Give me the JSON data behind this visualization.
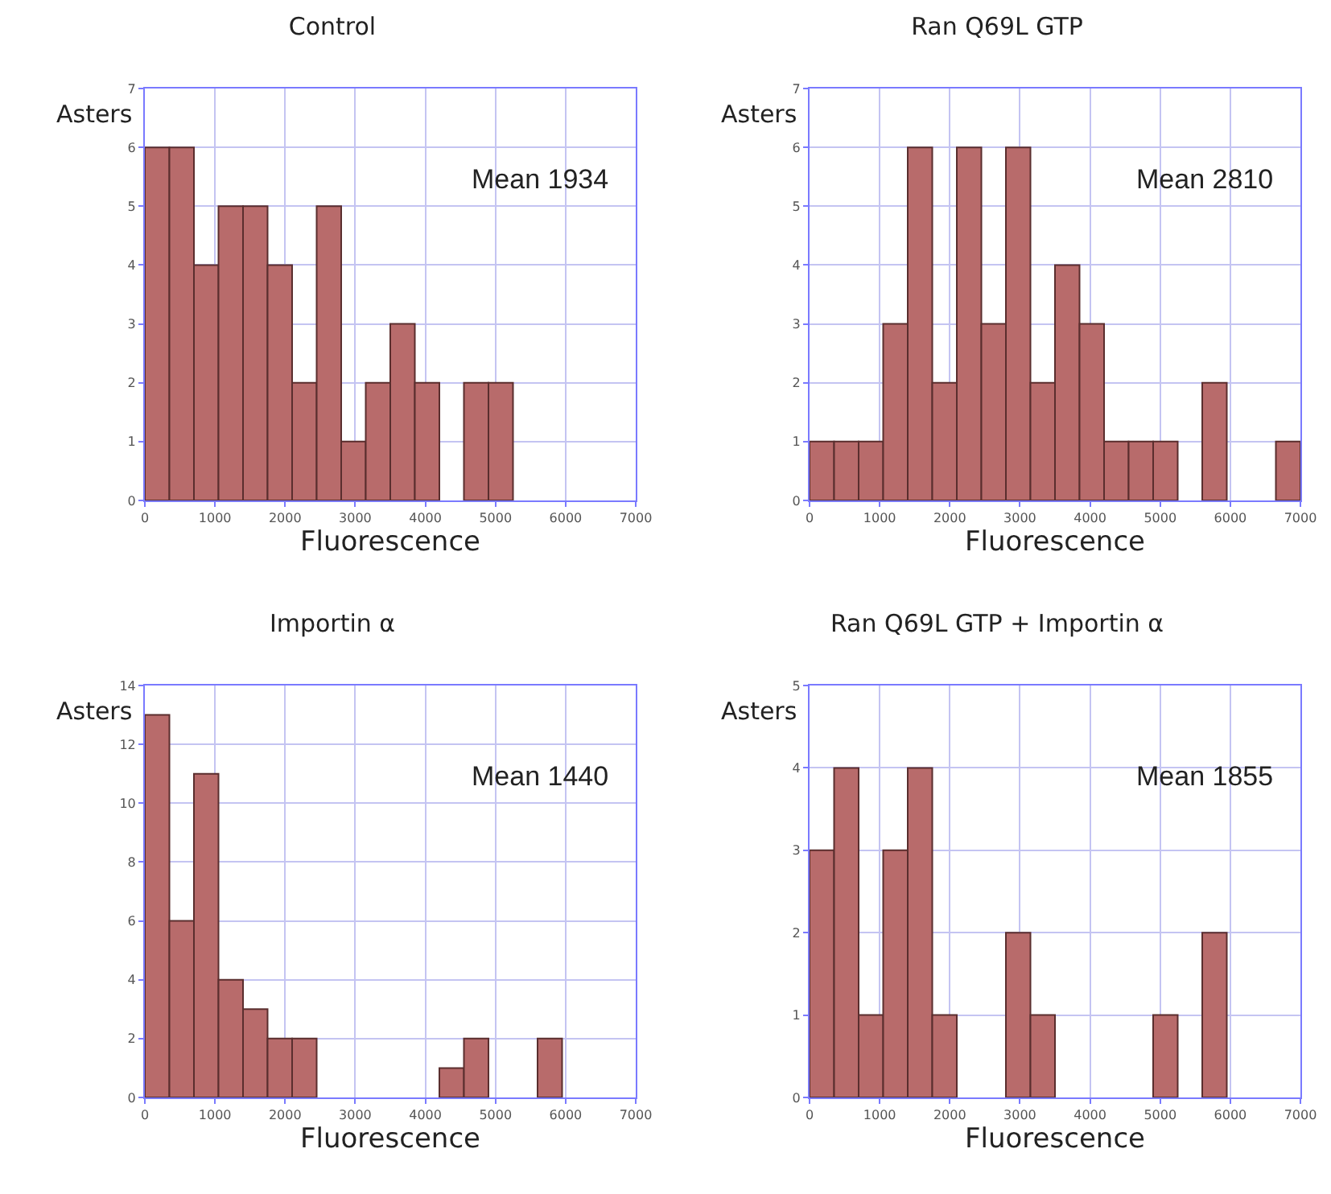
{
  "chart_data": [
    {
      "type": "histogram",
      "title": "Control",
      "xlabel": "Fluorescence",
      "ylabel": "Asters",
      "annotations": [
        "Mean 1934"
      ],
      "bins": [
        0,
        350,
        700,
        1050,
        1400,
        1750,
        2100,
        2450,
        2800,
        3150,
        3500,
        3850,
        4200,
        4550,
        4900,
        5250
      ],
      "values": [
        6,
        6,
        4,
        5,
        5,
        4,
        2,
        5,
        1,
        2,
        3,
        2,
        0,
        2,
        2
      ],
      "color": "#b86b6b",
      "xlim": [
        0,
        7000
      ],
      "xticks": [
        0,
        1000,
        2000,
        3000,
        4000,
        5000,
        6000,
        7000
      ],
      "ylim": [
        0,
        7
      ],
      "yticks": [
        0,
        1,
        2,
        3,
        4,
        5,
        6,
        7
      ],
      "grid": true
    },
    {
      "type": "histogram",
      "title": "Ran Q69L GTP",
      "xlabel": "Fluorescence",
      "ylabel": "Asters",
      "annotations": [
        "Mean 2810"
      ],
      "bins": [
        0,
        350,
        700,
        1050,
        1400,
        1750,
        2100,
        2450,
        2800,
        3150,
        3500,
        3850,
        4200,
        4550,
        4900,
        5250,
        5600,
        5950,
        6300,
        6650,
        7000
      ],
      "values": [
        1,
        1,
        1,
        3,
        6,
        2,
        6,
        3,
        6,
        2,
        4,
        3,
        1,
        1,
        1,
        0,
        2,
        0,
        0,
        1
      ],
      "color": "#b86b6b",
      "xlim": [
        0,
        7000
      ],
      "xticks": [
        0,
        1000,
        2000,
        3000,
        4000,
        5000,
        6000,
        7000
      ],
      "ylim": [
        0,
        7
      ],
      "yticks": [
        0,
        1,
        2,
        3,
        4,
        5,
        6,
        7
      ],
      "grid": true
    },
    {
      "type": "histogram",
      "title": "Importin α",
      "xlabel": "Fluorescence",
      "ylabel": "Asters",
      "annotations": [
        "Mean 1440"
      ],
      "bins": [
        0,
        350,
        700,
        1050,
        1400,
        1750,
        2100,
        2450,
        2800,
        3150,
        3500,
        3850,
        4200,
        4550,
        4900,
        5250,
        5600,
        5950
      ],
      "values": [
        13,
        6,
        11,
        4,
        3,
        2,
        2,
        0,
        0,
        0,
        0,
        0,
        1,
        2,
        0,
        0,
        2
      ],
      "color": "#b86b6b",
      "xlim": [
        0,
        7000
      ],
      "xticks": [
        0,
        1000,
        2000,
        3000,
        4000,
        5000,
        6000,
        7000
      ],
      "ylim": [
        0,
        14
      ],
      "yticks": [
        0,
        2,
        4,
        6,
        8,
        10,
        12,
        14
      ],
      "grid": true
    },
    {
      "type": "histogram",
      "title": "Ran Q69L GTP + Importin α",
      "xlabel": "Fluorescence",
      "ylabel": "Asters",
      "annotations": [
        "Mean 1855"
      ],
      "bins": [
        0,
        350,
        700,
        1050,
        1400,
        1750,
        2100,
        2450,
        2800,
        3150,
        3500,
        3850,
        4200,
        4550,
        4900,
        5250,
        5600,
        5950
      ],
      "values": [
        3,
        4,
        1,
        3,
        4,
        1,
        0,
        0,
        2,
        1,
        0,
        0,
        0,
        0,
        1,
        0,
        2
      ],
      "color": "#b86b6b",
      "xlim": [
        0,
        7000
      ],
      "xticks": [
        0,
        1000,
        2000,
        3000,
        4000,
        5000,
        6000,
        7000
      ],
      "ylim": [
        0,
        5
      ],
      "yticks": [
        0,
        1,
        2,
        3,
        4,
        5
      ],
      "grid": true
    }
  ]
}
